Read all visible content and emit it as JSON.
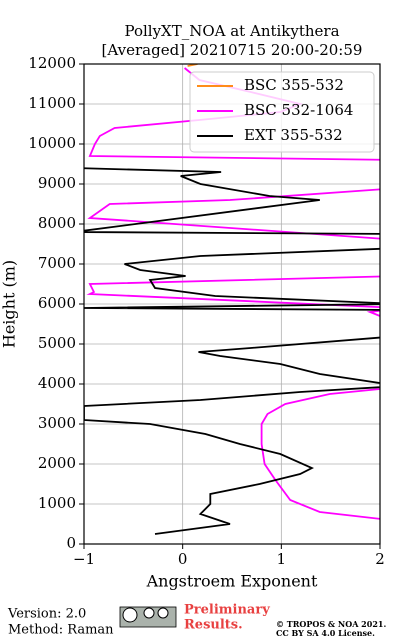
{
  "chart_data": {
    "type": "line",
    "title": "PollyXT_NOA at Antikythera",
    "subtitle": "[Averaged] 20210715 20:00-20:59",
    "x_label": "Angstroem Exponent",
    "y_label": "Height (m)",
    "xlim": [
      -1,
      2
    ],
    "ylim": [
      0,
      12000
    ],
    "xticks": [
      {
        "value": -1,
        "label": "−1"
      },
      0,
      1,
      2
    ],
    "yticks": [
      0,
      1000,
      2000,
      3000,
      4000,
      5000,
      6000,
      7000,
      8000,
      9000,
      10000,
      11000,
      12000
    ],
    "grid": true,
    "legend": "upper right",
    "series": [
      {
        "name": "BSC 355-532",
        "color": "#ff8c1a",
        "y": [
          11950,
          12000
        ],
        "values": [
          0.05,
          0.15
        ]
      },
      {
        "name": "BSC 532-1064",
        "color": "#ff00ff",
        "y": [
          600,
          800,
          1100,
          1600,
          2000,
          2500,
          3000,
          3250,
          3500,
          3750,
          3900,
          5600,
          5800,
          5900,
          6250,
          6300,
          6500,
          6700,
          7600,
          8150,
          8500,
          8600,
          8900,
          9600,
          9700,
          10000,
          10200,
          10400,
          10600,
          10800,
          11000,
          11300,
          11600,
          11900
        ],
        "values": [
          2.1,
          1.39,
          1.09,
          0.94,
          0.83,
          0.8,
          0.8,
          0.86,
          1.04,
          1.49,
          2.1,
          2.1,
          1.9,
          2.2,
          -0.94,
          -0.9,
          -0.94,
          2.2,
          2.2,
          -0.94,
          -0.74,
          0.48,
          2.2,
          2.2,
          -0.94,
          -0.89,
          -0.84,
          -0.69,
          0.17,
          0.99,
          1.19,
          0.69,
          0.17,
          0.02
        ]
      },
      {
        "name": "EXT 355-532",
        "color": "#000000",
        "y": [
          250,
          500,
          750,
          1000,
          1250,
          1500,
          1750,
          1900,
          2250,
          2500,
          2750,
          3000,
          3100,
          3450,
          3600,
          3800,
          3950,
          4250,
          4500,
          4700,
          4800,
          4900,
          5200,
          5850,
          5900,
          6000,
          6200,
          6400,
          6600,
          6700,
          6850,
          7000,
          7200,
          7400,
          7750,
          7800,
          8600,
          8700,
          9000,
          9200,
          9300,
          9400,
          9550
        ],
        "values": [
          -0.28,
          0.48,
          0.18,
          0.28,
          0.28,
          0.78,
          1.19,
          1.31,
          0.99,
          0.58,
          0.23,
          -0.33,
          -1,
          -1,
          0.18,
          1.19,
          2.2,
          1.39,
          0.99,
          0.38,
          0.16,
          0.69,
          2.2,
          2.2,
          -1,
          2.2,
          0.33,
          -0.28,
          -0.33,
          0.03,
          -0.43,
          -0.59,
          0.18,
          2.2,
          2.2,
          -1.1,
          1.39,
          0.88,
          0.18,
          -0.02,
          0.39,
          -1.1,
          -1.1
        ]
      }
    ]
  },
  "footer": {
    "version": "Version: 2.0",
    "method": "Method: Raman",
    "notice": "Preliminary",
    "notice2": "Results.",
    "copyright": "© TROPOS & NOA 2021.",
    "license": "CC BY SA 4.0 License."
  }
}
